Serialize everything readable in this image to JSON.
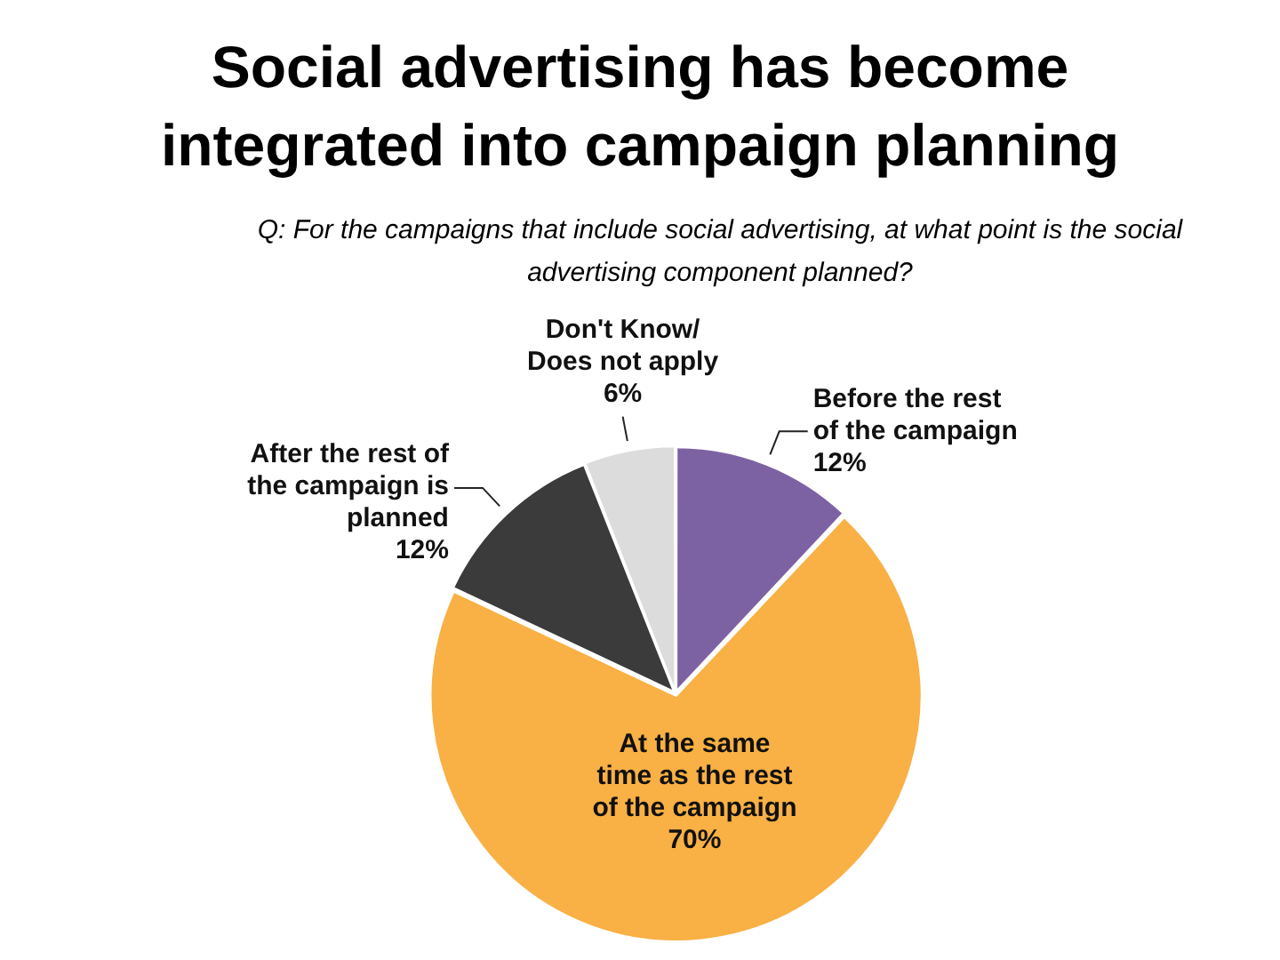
{
  "chart_data": {
    "type": "pie",
    "title": "Social advertising has become integrated into campaign planning",
    "subtitle": "Q: For the campaigns that include social advertising, at what point is the social advertising component planned?",
    "categories": [
      "Before the rest of the campaign",
      "At the same time as the rest of the campaign",
      "After the rest of the campaign is planned",
      "Don't Know/ Does not apply"
    ],
    "values": [
      12,
      70,
      12,
      6
    ],
    "colors": [
      "#7d62a3",
      "#f9b044",
      "#3b3b3b",
      "#dcdcdc"
    ],
    "value_labels": [
      "12%",
      "70%",
      "12%",
      "6%"
    ]
  }
}
